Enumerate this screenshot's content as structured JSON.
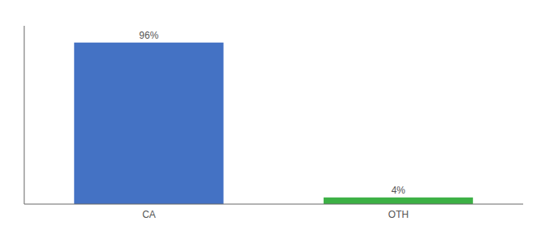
{
  "chart_data": {
    "type": "bar",
    "categories": [
      "CA",
      "OTH"
    ],
    "values": [
      96,
      4
    ],
    "colors": [
      "#4472c4",
      "#3cb045"
    ],
    "ylim": [
      0,
      106
    ],
    "data_labels": true,
    "value_labels": [
      "96%",
      "4%"
    ],
    "tick_labels": "x",
    "grid": false
  }
}
